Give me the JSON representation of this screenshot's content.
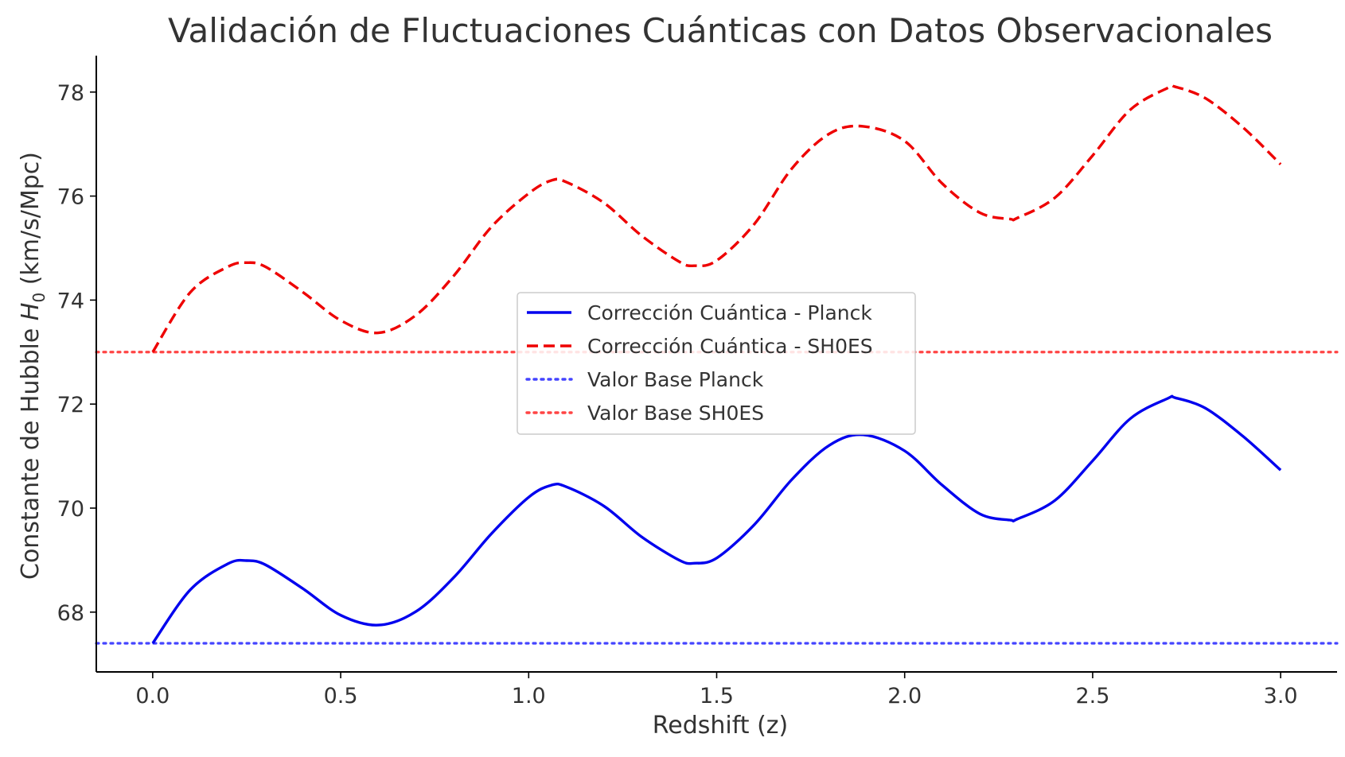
{
  "chart_data": {
    "type": "line",
    "title": "Validación de Fluctuaciones Cuánticas con Datos Observacionales",
    "xlabel": "Redshift (z)",
    "ylabel_prefix": "Constante de Hubble ",
    "ylabel_symbol": "H",
    "ylabel_subscript": "0",
    "ylabel_suffix": " (km/s/Mpc)",
    "xlim": [
      -0.15,
      3.15
    ],
    "ylim": [
      66.85,
      78.7
    ],
    "xticks": [
      0.0,
      0.5,
      1.0,
      1.5,
      2.0,
      2.5,
      3.0
    ],
    "xtick_labels": [
      "0.0",
      "0.5",
      "1.0",
      "1.5",
      "2.0",
      "2.5",
      "3.0"
    ],
    "yticks": [
      68,
      70,
      72,
      74,
      76,
      78
    ],
    "ytick_labels": [
      "68",
      "70",
      "72",
      "74",
      "76",
      "78"
    ],
    "grid": false,
    "legend_position": "center",
    "x": [
      0.0,
      0.1,
      0.2,
      0.25,
      0.3,
      0.4,
      0.5,
      0.6,
      0.7,
      0.8,
      0.9,
      1.0,
      1.06,
      1.1,
      1.2,
      1.3,
      1.4,
      1.44,
      1.5,
      1.6,
      1.7,
      1.8,
      1.89,
      2.0,
      2.1,
      2.2,
      2.28,
      2.3,
      2.4,
      2.5,
      2.6,
      2.7,
      2.72,
      2.8,
      2.9,
      3.0
    ],
    "series": [
      {
        "name": "Corrección Cuántica - Planck",
        "style": "solid",
        "color": "#0000ee",
        "values": [
          67.4,
          68.43,
          68.93,
          68.99,
          68.91,
          68.45,
          67.94,
          67.75,
          68.01,
          68.66,
          69.5,
          70.21,
          70.44,
          70.41,
          70.04,
          69.45,
          69.0,
          68.94,
          69.04,
          69.68,
          70.55,
          71.21,
          71.41,
          71.1,
          70.44,
          69.89,
          69.77,
          69.79,
          70.15,
          70.91,
          71.72,
          72.11,
          72.12,
          71.92,
          71.38,
          70.73
        ]
      },
      {
        "name": "Corrección Cuántica - SH0ES",
        "style": "dashed",
        "color": "#ee0000",
        "values": [
          73.0,
          74.15,
          74.64,
          74.72,
          74.64,
          74.15,
          73.61,
          73.37,
          73.71,
          74.46,
          75.4,
          76.05,
          76.3,
          76.27,
          75.87,
          75.24,
          74.74,
          74.66,
          74.76,
          75.46,
          76.53,
          77.2,
          77.34,
          77.06,
          76.24,
          75.68,
          75.56,
          75.58,
          75.97,
          76.78,
          77.66,
          78.08,
          78.1,
          77.88,
          77.32,
          76.61
        ]
      },
      {
        "name": "Valor Base Planck",
        "style": "dotted",
        "color": "#4444ff",
        "constant": 67.4
      },
      {
        "name": "Valor Base SH0ES",
        "style": "dotted",
        "color": "#ff4444",
        "constant": 73.0
      }
    ]
  }
}
